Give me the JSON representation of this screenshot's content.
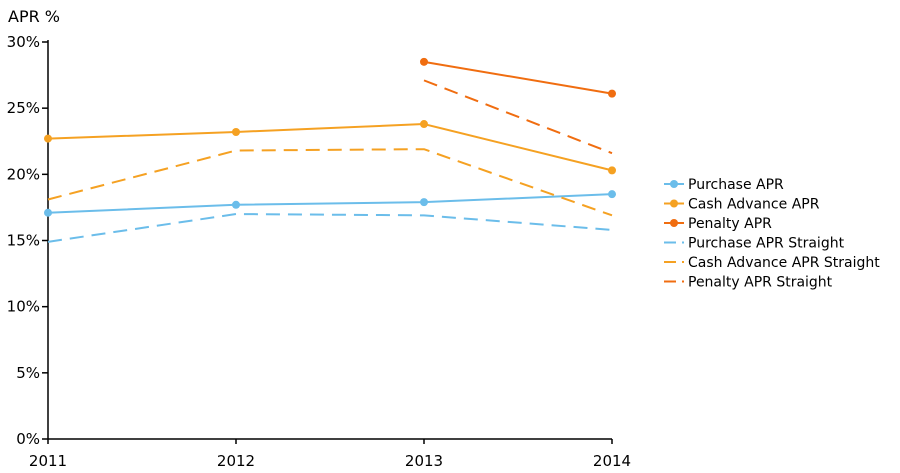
{
  "chart_data": {
    "type": "line",
    "title": "",
    "xlabel": "",
    "ylabel": "APR %",
    "x": [
      "2011",
      "2012",
      "2013",
      "2014"
    ],
    "ylim": [
      0,
      30
    ],
    "y_ticks": [
      "0%",
      "5%",
      "10%",
      "15%",
      "20%",
      "25%",
      "30%"
    ],
    "y_tick_values": [
      0,
      5,
      10,
      15,
      20,
      25,
      30
    ],
    "grid": false,
    "legend_position": "right",
    "series": [
      {
        "name": "Purchase APR",
        "values": [
          17.1,
          17.7,
          17.9,
          18.5
        ],
        "color": "#6bbdea",
        "style": "solid",
        "markers": true
      },
      {
        "name": "Cash Advance APR",
        "values": [
          22.7,
          23.2,
          23.8,
          20.3
        ],
        "color": "#f5a122",
        "style": "solid",
        "markers": true
      },
      {
        "name": "Penalty APR",
        "values": [
          null,
          null,
          28.5,
          26.1
        ],
        "color": "#f06d10",
        "style": "solid",
        "markers": true
      },
      {
        "name": "Purchase APR Straight",
        "values": [
          14.9,
          17.0,
          16.9,
          15.8
        ],
        "color": "#6bbdea",
        "style": "dashed",
        "markers": false
      },
      {
        "name": "Cash Advance APR Straight",
        "values": [
          18.1,
          21.8,
          21.9,
          16.9
        ],
        "color": "#f5a122",
        "style": "dashed",
        "markers": false
      },
      {
        "name": "Penalty APR Straight",
        "values": [
          null,
          null,
          27.1,
          21.6
        ],
        "color": "#f06d10",
        "style": "dashed",
        "markers": false
      }
    ]
  }
}
